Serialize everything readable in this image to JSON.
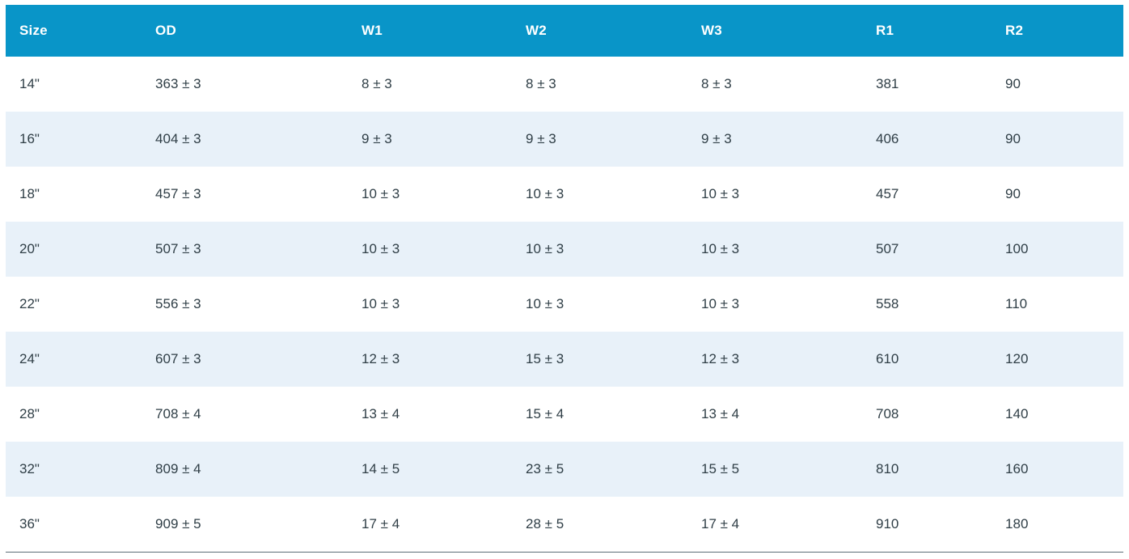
{
  "colors": {
    "header_bg": "#0995c8",
    "header_text": "#ffffff",
    "row_bg": "#ffffff",
    "row_alt_bg": "#e8f1f9",
    "body_text": "#2f3e46",
    "bottom_border": "#5d6d77"
  },
  "chart_data": {
    "type": "table",
    "title": "",
    "columns": [
      "Size",
      "OD",
      "W1",
      "W2",
      "W3",
      "R1",
      "R2"
    ],
    "rows": [
      [
        "14\"",
        "363 ± 3",
        "8 ± 3",
        "8 ± 3",
        "8 ± 3",
        "381",
        "90"
      ],
      [
        "16\"",
        "404 ± 3",
        "9 ± 3",
        "9 ± 3",
        "9 ± 3",
        "406",
        "90"
      ],
      [
        "18\"",
        "457 ± 3",
        "10 ± 3",
        "10 ± 3",
        "10 ± 3",
        "457",
        "90"
      ],
      [
        "20\"",
        "507 ± 3",
        "10 ± 3",
        "10 ± 3",
        "10 ± 3",
        "507",
        "100"
      ],
      [
        "22\"",
        "556 ± 3",
        "10 ± 3",
        "10 ± 3",
        "10 ± 3",
        "558",
        "110"
      ],
      [
        "24\"",
        "607 ± 3",
        "12 ± 3",
        "15 ± 3",
        "12 ± 3",
        "610",
        "120"
      ],
      [
        "28\"",
        "708 ± 4",
        "13 ± 4",
        "15 ± 4",
        "13 ± 4",
        "708",
        "140"
      ],
      [
        "32\"",
        "809 ± 4",
        "14 ± 5",
        "23 ± 5",
        "15 ± 5",
        "810",
        "160"
      ],
      [
        "36\"",
        "909 ± 5",
        "17 ± 4",
        "28 ± 5",
        "17 ± 4",
        "910",
        "180"
      ]
    ]
  }
}
